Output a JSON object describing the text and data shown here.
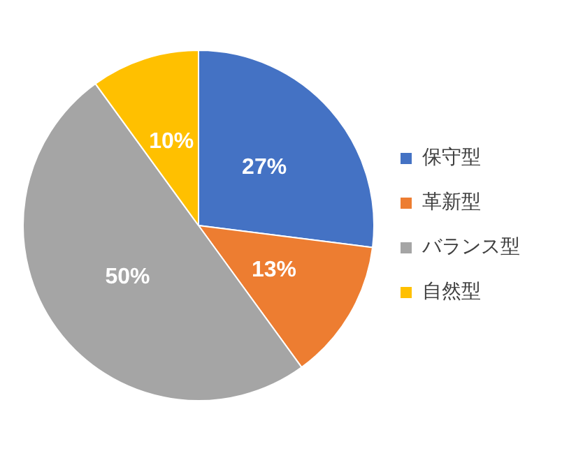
{
  "chart_data": {
    "type": "pie",
    "categories": [
      "保守型",
      "革新型",
      "バランス型",
      "自然型"
    ],
    "values": [
      27,
      13,
      50,
      10
    ],
    "colors": [
      "#4472c4",
      "#ed7d31",
      "#a5a5a5",
      "#ffc000"
    ],
    "value_labels": [
      "27%",
      "13%",
      "50%",
      "10%"
    ],
    "legend": "right"
  }
}
